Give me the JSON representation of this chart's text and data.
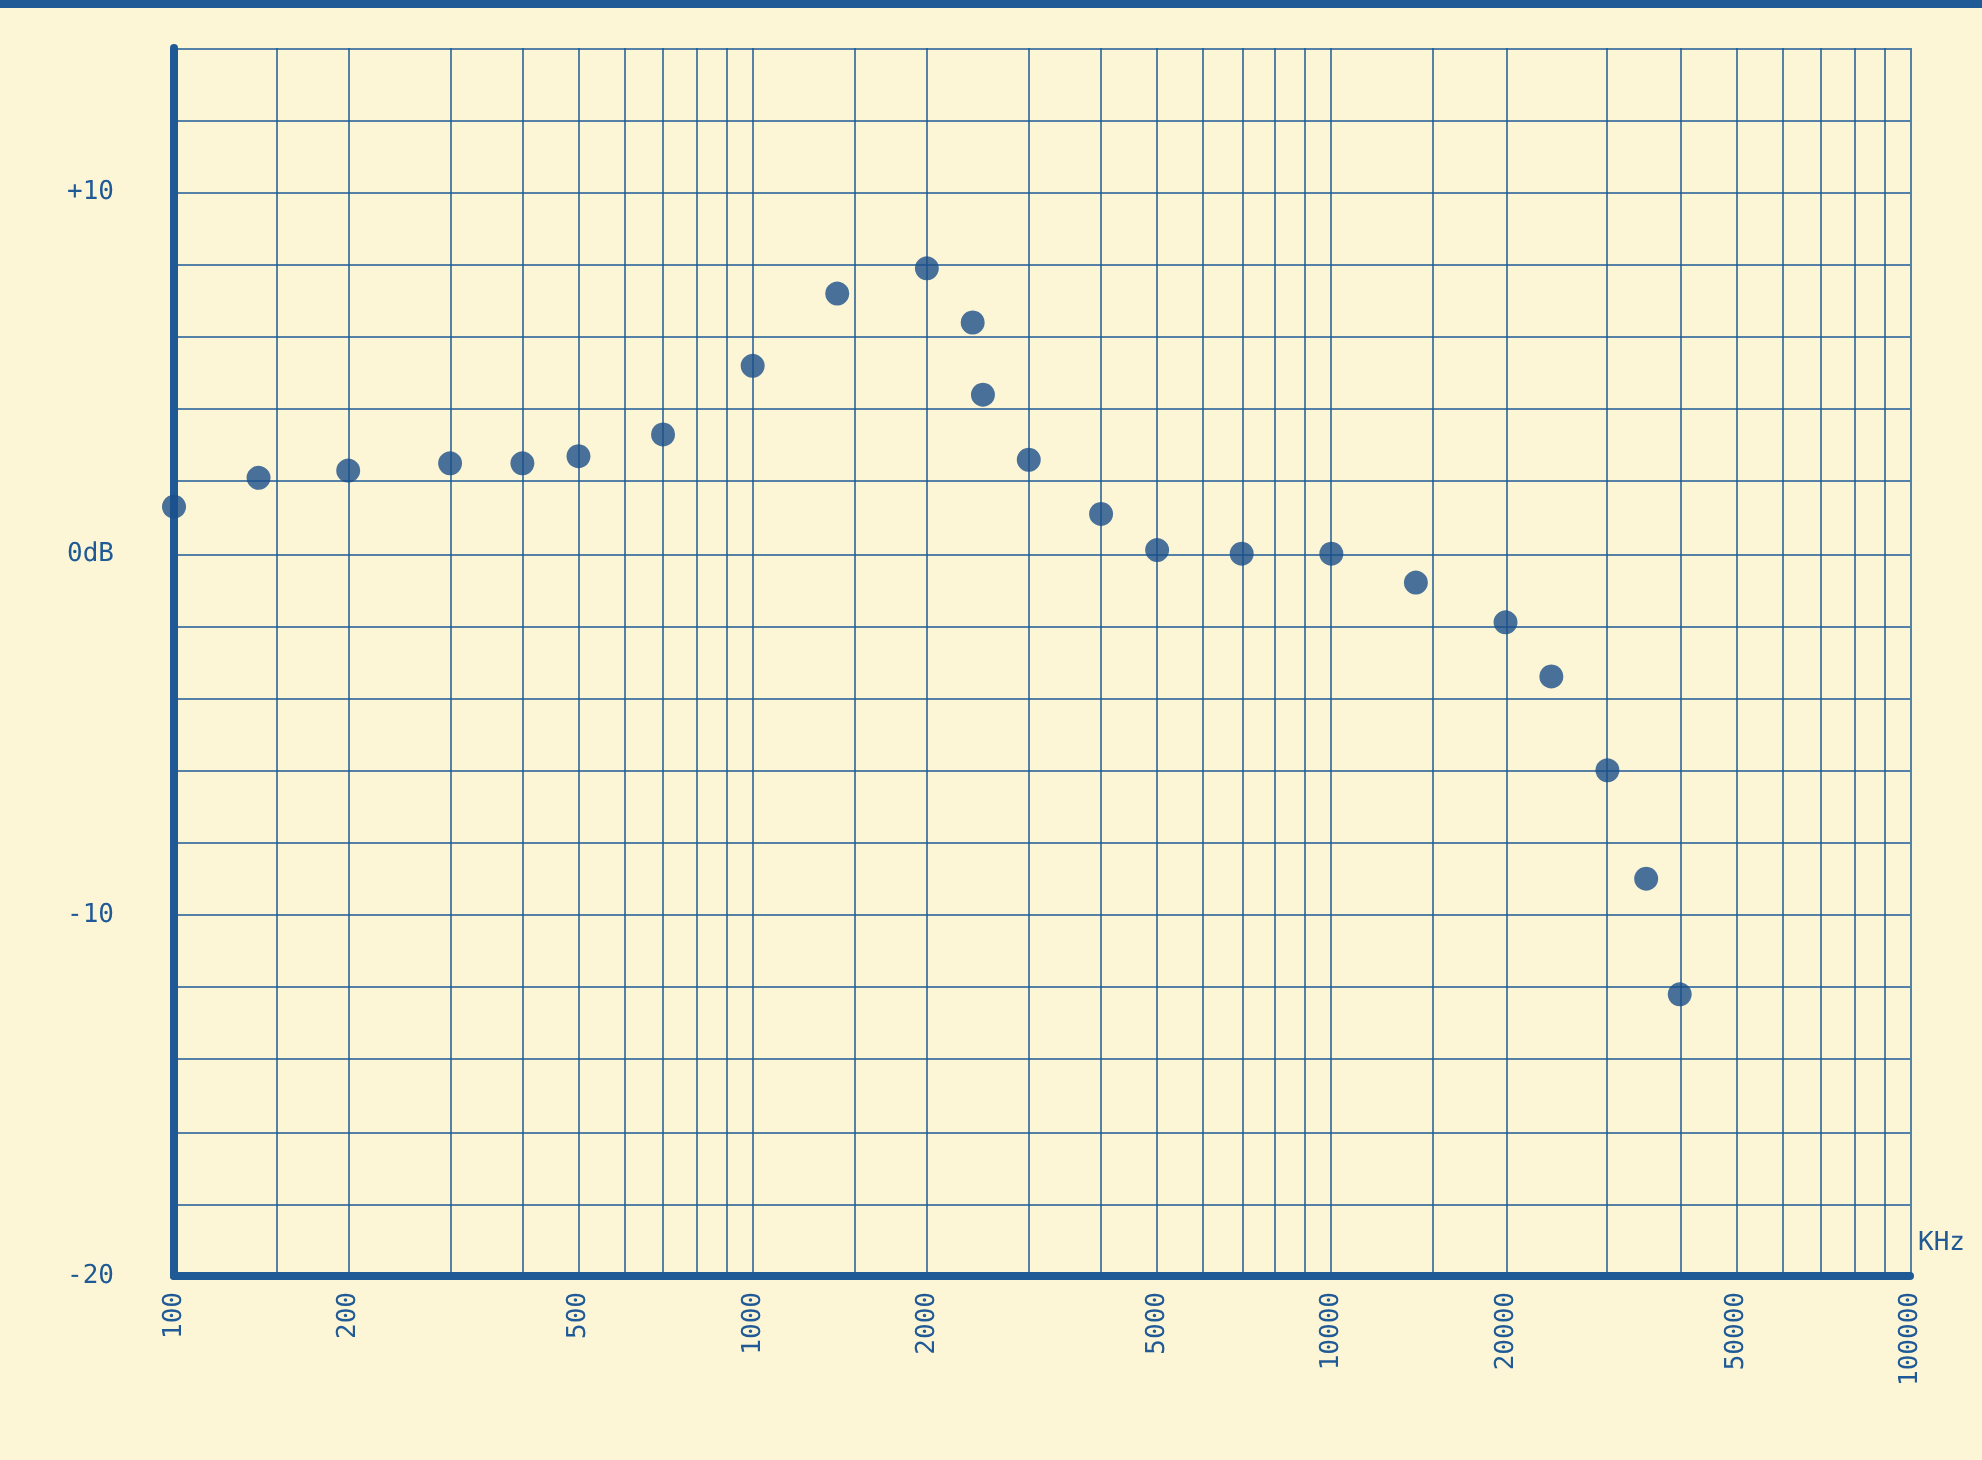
{
  "chart_data": {
    "type": "scatter",
    "xlabel": "KHz",
    "log": "x",
    "grid": true,
    "marker": "circle",
    "x": [
      100,
      140,
      200,
      300,
      400,
      500,
      700,
      1000,
      1400,
      2000,
      2400,
      2500,
      3000,
      4000,
      5000,
      7000,
      10000,
      14000,
      20000,
      24000,
      30000,
      35000,
      40000
    ],
    "series": [
      {
        "color": "#1a4f8a",
        "values": [
          1.3,
          2.1,
          2.3,
          2.5,
          2.5,
          2.7,
          3.3,
          5.2,
          7.2,
          7.9,
          6.4,
          4.4,
          2.6,
          1.1,
          0.1,
          0,
          0,
          -0.8,
          -1.9,
          -3.4,
          -6,
          -9,
          -12.2
        ]
      }
    ],
    "xlim": [
      100,
      100000
    ],
    "xticks": [
      100,
      {
        "value": 150,
        "label": null
      },
      200,
      {
        "value": 300,
        "label": null
      },
      {
        "value": 400,
        "label": null
      },
      500,
      {
        "value": 600,
        "label": null
      },
      {
        "value": 700,
        "label": null
      },
      {
        "value": 800,
        "label": null
      },
      {
        "value": 900,
        "label": null
      },
      1000,
      {
        "value": 1500,
        "label": null
      },
      2000,
      {
        "value": 3000,
        "label": null
      },
      {
        "value": 4000,
        "label": null
      },
      5000,
      {
        "value": 6000,
        "label": null
      },
      {
        "value": 7000,
        "label": null
      },
      {
        "value": 8000,
        "label": null
      },
      {
        "value": 9000,
        "label": null
      },
      10000,
      {
        "value": 15000,
        "label": null
      },
      20000,
      {
        "value": 30000,
        "label": null
      },
      {
        "value": 40000,
        "label": null
      },
      50000,
      {
        "value": 60000,
        "label": null
      },
      {
        "value": 70000,
        "label": null
      },
      {
        "value": 80000,
        "label": null
      },
      {
        "value": 90000,
        "label": null
      },
      100000
    ],
    "ylim": [
      -20,
      14
    ],
    "yticks": [
      {
        "value": -20,
        "label": "-20"
      },
      {
        "value": -18,
        "label": null
      },
      {
        "value": -16,
        "label": null
      },
      {
        "value": -14,
        "label": null
      },
      {
        "value": -12,
        "label": null
      },
      {
        "value": -10,
        "label": "-10"
      },
      {
        "value": -8,
        "label": null
      },
      {
        "value": -6,
        "label": null
      },
      {
        "value": -4,
        "label": null
      },
      {
        "value": -2,
        "label": null
      },
      {
        "value": 0,
        "label": "0dB"
      },
      {
        "value": 2,
        "label": null
      },
      {
        "value": 4,
        "label": null
      },
      {
        "value": 6,
        "label": null
      },
      {
        "value": 8,
        "label": null
      },
      {
        "value": 10,
        "label": "+10"
      },
      {
        "value": 12,
        "label": null
      },
      {
        "value": 14,
        "label": null
      }
    ]
  }
}
